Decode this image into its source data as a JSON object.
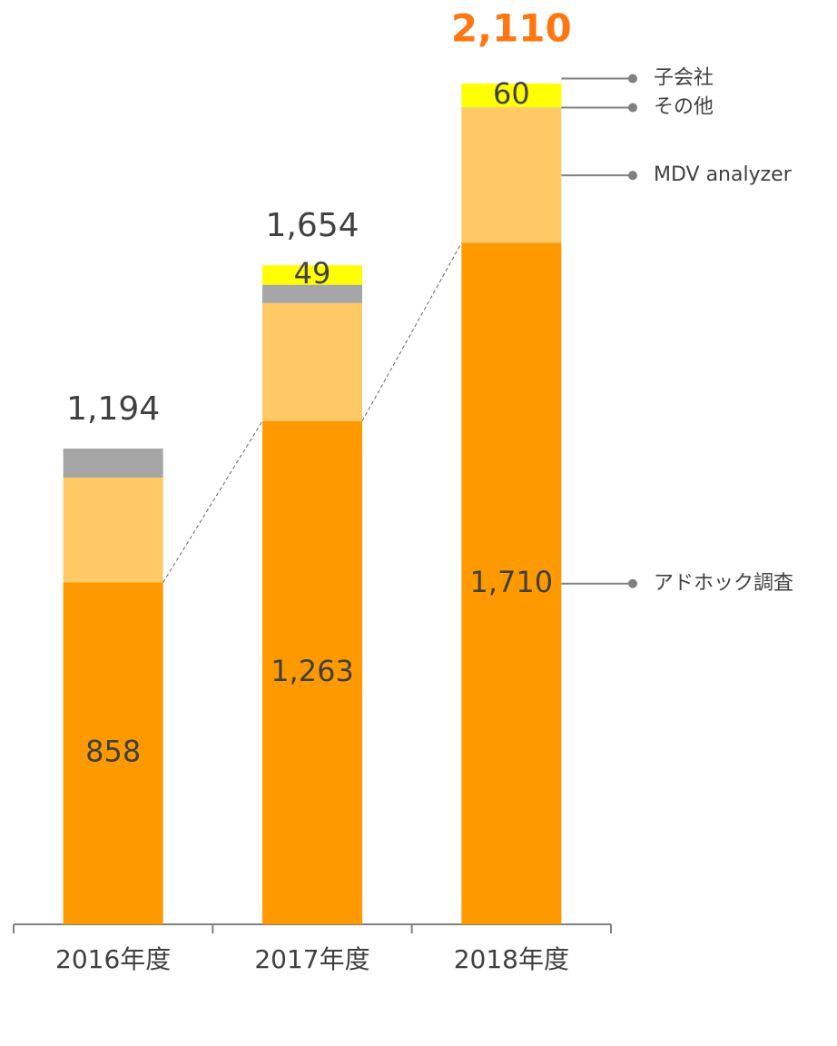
{
  "chart_data": {
    "type": "stacked-bar",
    "categories": [
      "2016年度",
      "2017年度",
      "2018年度"
    ],
    "series": [
      {
        "name": "アドホック調査",
        "color": "#FF9900",
        "values": [
          858,
          1263,
          1710
        ],
        "value_labels": [
          "858",
          "1,263",
          "1,710"
        ]
      },
      {
        "name": "MDV analyzer",
        "color": "#FFC966",
        "values": [
          263,
          296,
          339
        ]
      },
      {
        "name": "その他",
        "color": "#A6A6A6",
        "values": [
          73,
          46,
          1
        ]
      },
      {
        "name": "子会社",
        "color": "#FFFF00",
        "values": [
          null,
          49,
          60
        ]
      }
    ],
    "totals": {
      "values": [
        1194,
        1654,
        2110
      ],
      "value_labels": [
        "1,194",
        "1,654",
        "2,110"
      ]
    }
  }
}
